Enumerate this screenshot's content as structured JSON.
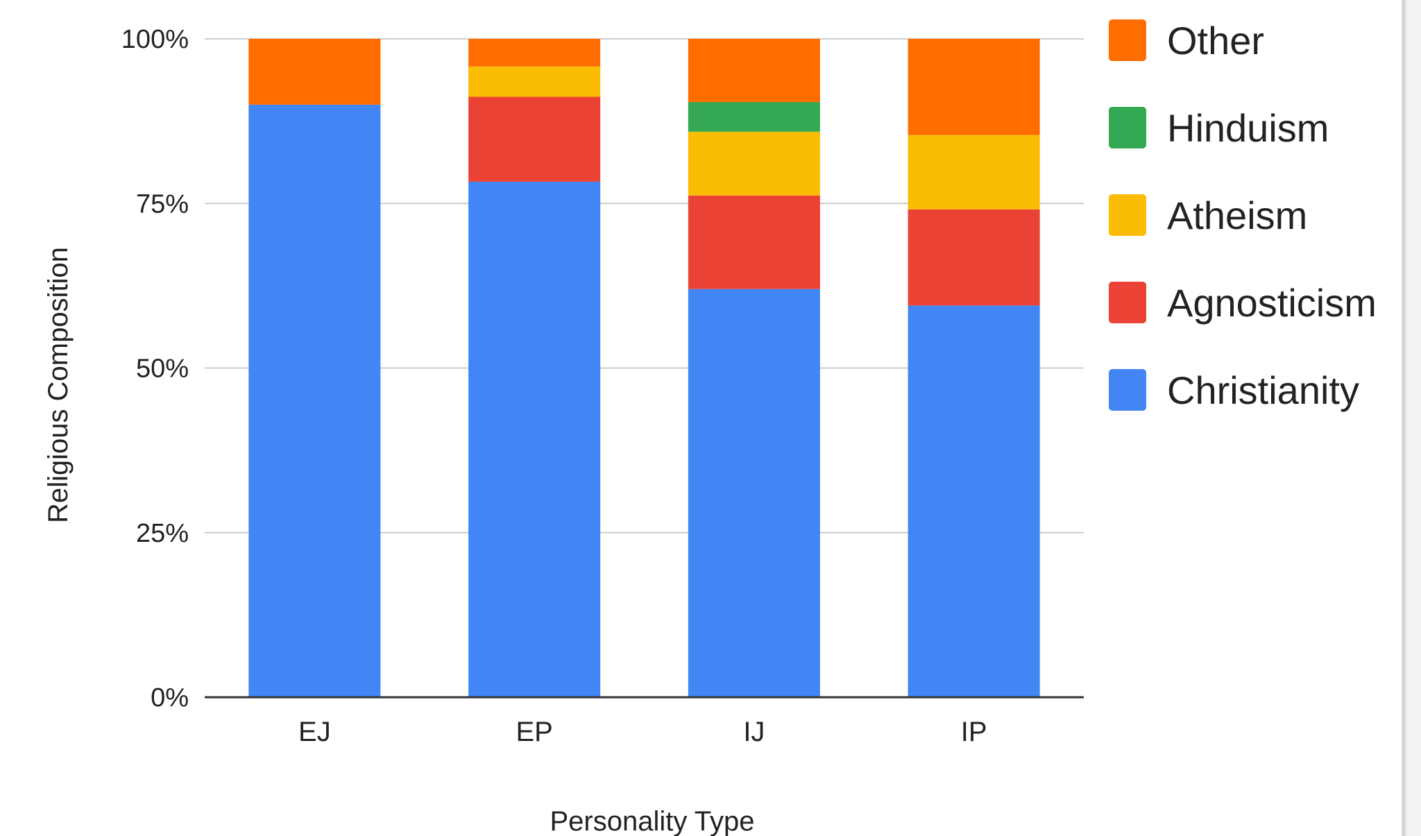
{
  "chart_data": {
    "type": "bar",
    "stacked": true,
    "xlabel": "Personality Type",
    "ylabel": "Religious Composition",
    "categories": [
      "EJ",
      "EP",
      "IJ",
      "IP"
    ],
    "y_ticks": [
      "0%",
      "25%",
      "50%",
      "75%",
      "100%"
    ],
    "ylim": [
      0,
      100
    ],
    "grid": true,
    "legend_position": "right",
    "legend_order": [
      "Other",
      "Hinduism",
      "Atheism",
      "Agnosticism",
      "Christianity"
    ],
    "series": [
      {
        "name": "Christianity",
        "color": "#4285f4",
        "values": [
          90,
          78.3,
          62,
          59.5
        ]
      },
      {
        "name": "Agnosticism",
        "color": "#ea4335",
        "values": [
          0,
          12.9,
          14.2,
          14.6
        ]
      },
      {
        "name": "Atheism",
        "color": "#fbbc04",
        "values": [
          0,
          4.6,
          9.7,
          11.3
        ]
      },
      {
        "name": "Hinduism",
        "color": "#34a853",
        "values": [
          0,
          0,
          4.5,
          0
        ]
      },
      {
        "name": "Other",
        "color": "#ff6d01",
        "values": [
          10,
          4.2,
          9.6,
          14.6
        ]
      }
    ]
  }
}
